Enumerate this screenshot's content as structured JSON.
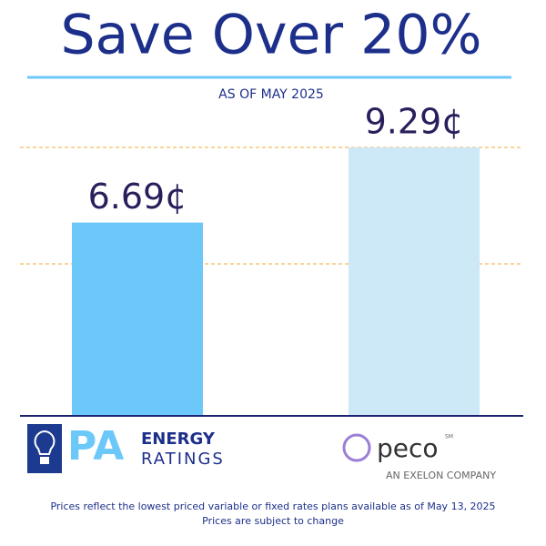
{
  "chart_data": {
    "type": "bar",
    "title": "Save Over 20%",
    "subtitle": "AS OF MAY 2025",
    "categories": [
      null,
      null
    ],
    "values": [
      6.69,
      9.29
    ],
    "value_labels": [
      "6.69¢",
      "9.29¢"
    ],
    "colors": [
      "#6cc8f8",
      "#cde8f7"
    ]
  },
  "logos": {
    "left": {
      "big": "PA",
      "line1": "ENERGY",
      "line2": "RATINGS"
    },
    "right": {
      "name": "peco",
      "mark": "SM",
      "tagline": "AN EXELON COMPANY"
    }
  },
  "footnote": [
    "Prices reflect the lowest priced variable or fixed rates plans available as of May 13, 2025",
    "Prices are subject to change"
  ]
}
